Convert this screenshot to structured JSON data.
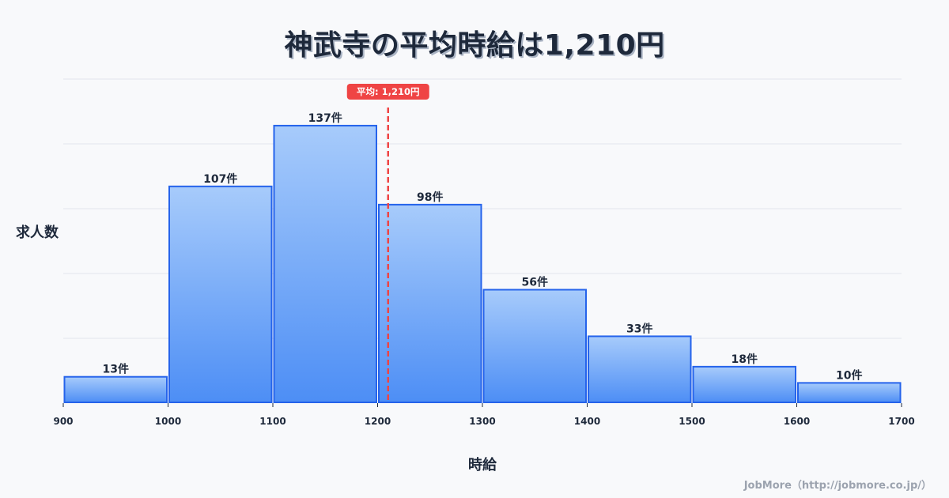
{
  "title": "神武寺の平均時給は1,210円",
  "y_axis_label": "求人数",
  "x_axis_label": "時給",
  "credit": "JobMore（http://jobmore.co.jp/）",
  "mean_badge": "平均: 1,210円",
  "colors": {
    "background": "#f8f9fb",
    "bar_fill_top": "#a7cbfb",
    "bar_fill_bottom": "#4d8ef5",
    "bar_stroke": "#2563eb",
    "mean_line": "#ef4444",
    "grid": "#e2e5ec",
    "text": "#1e293b",
    "credit": "#9ca3af"
  },
  "chart_data": {
    "type": "bar",
    "subtype": "histogram",
    "title": "神武寺の平均時給は1,210円",
    "xlabel": "時給",
    "ylabel": "求人数",
    "bins": [
      {
        "from": 900,
        "to": 1000,
        "count": 13,
        "label": "13件"
      },
      {
        "from": 1000,
        "to": 1100,
        "count": 107,
        "label": "107件"
      },
      {
        "from": 1100,
        "to": 1200,
        "count": 137,
        "label": "137件"
      },
      {
        "from": 1200,
        "to": 1300,
        "count": 98,
        "label": "98件"
      },
      {
        "from": 1300,
        "to": 1400,
        "count": 56,
        "label": "56件"
      },
      {
        "from": 1400,
        "to": 1500,
        "count": 33,
        "label": "33件"
      },
      {
        "from": 1500,
        "to": 1600,
        "count": 18,
        "label": "18件"
      },
      {
        "from": 1600,
        "to": 1700,
        "count": 10,
        "label": "10件"
      }
    ],
    "categories": [
      "900-1000",
      "1000-1100",
      "1100-1200",
      "1200-1300",
      "1300-1400",
      "1400-1500",
      "1500-1600",
      "1600-1700"
    ],
    "values": [
      13,
      107,
      137,
      98,
      56,
      33,
      18,
      10
    ],
    "x_ticks": [
      900,
      1000,
      1100,
      1200,
      1300,
      1400,
      1500,
      1600,
      1700
    ],
    "xlim": [
      900,
      1700
    ],
    "ylim": [
      0,
      160
    ],
    "y_grid_step": 32,
    "grid": true,
    "y_tick_labels_shown": false,
    "legend": null,
    "annotations": [
      {
        "type": "vline",
        "x": 1210,
        "style": "dashed",
        "color": "#ef4444",
        "label": "平均: 1,210円"
      }
    ]
  }
}
